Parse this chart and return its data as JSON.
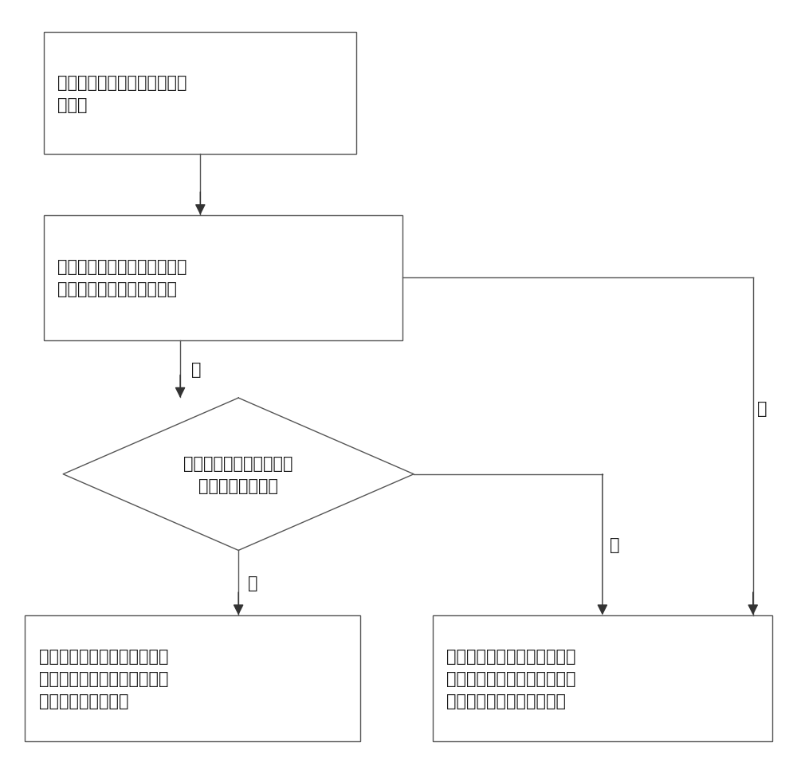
{
  "background_color": "#ffffff",
  "box1_text": "智能锁获取移动终端发送的开\n锁指令",
  "box2_text": "检测预设的数据库中是否存在\n移动终端所发送的开锁指令",
  "diamond_text": "判断开锁指令与数据库中\n预存数据是否匹配",
  "box3_text": "智能锁开启，生成智能锁已开\n启的信息并通过移动通讯数据\n反馈给所述移动终端",
  "box4_text": "智能锁不开启，生成智能锁未\n开启的信息并通过所述移动通\n讯数据反馈给所述移动终端",
  "label_yes1": "是",
  "label_no1": "否",
  "label_yes2": "是",
  "label_no2": "否",
  "box_edge_color": "#555555",
  "box_face_color": "#ffffff",
  "arrow_color": "#333333",
  "text_color": "#1a1a1a",
  "line_color": "#555555",
  "font_size": 15,
  "label_font_size": 15,
  "lw": 1.0
}
